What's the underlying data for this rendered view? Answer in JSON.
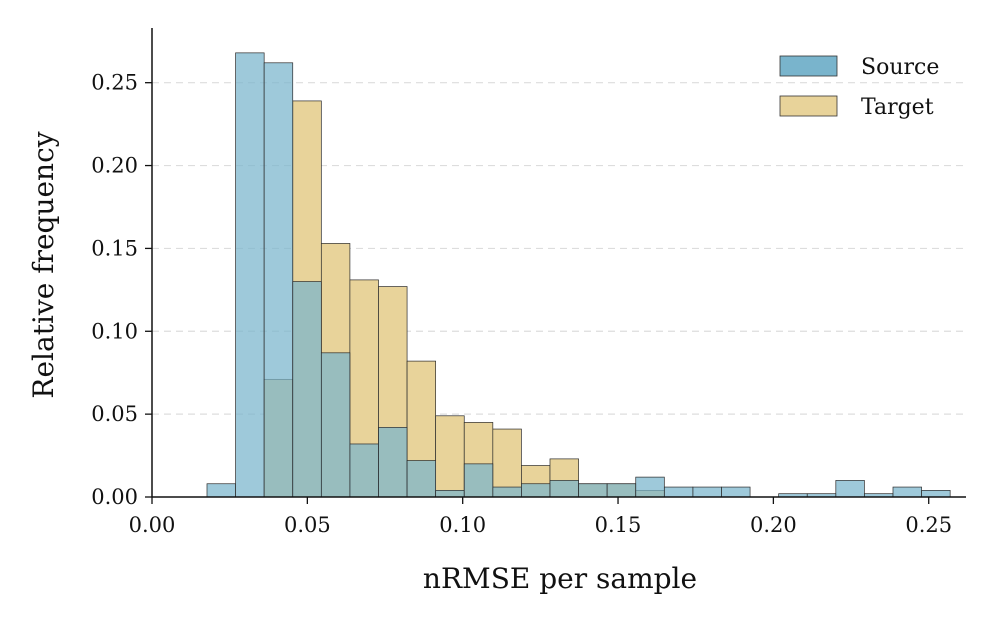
{
  "chart_data": {
    "type": "bar",
    "subtype": "overlapping-histogram",
    "title": "",
    "xlabel": "nRMSE per sample",
    "ylabel": "Relative frequency",
    "xlim": [
      0.0,
      0.262
    ],
    "ylim": [
      0.0,
      0.283
    ],
    "xticks": [
      0.0,
      0.05,
      0.1,
      0.15,
      0.2,
      0.25
    ],
    "xtick_labels": [
      "0.00",
      "0.05",
      "0.10",
      "0.15",
      "0.20",
      "0.25"
    ],
    "yticks": [
      0.0,
      0.05,
      0.1,
      0.15,
      0.2,
      0.25
    ],
    "ytick_labels": [
      "0.00",
      "0.05",
      "0.10",
      "0.15",
      "0.20",
      "0.25"
    ],
    "grid": "horizontal-dashed",
    "legend_position": "top-right",
    "bin_edges": [
      0.0177,
      0.0269,
      0.0361,
      0.0453,
      0.0545,
      0.0637,
      0.0729,
      0.0821,
      0.0913,
      0.1005,
      0.1097,
      0.1189,
      0.1281,
      0.1373,
      0.1465,
      0.1557,
      0.1649,
      0.1741,
      0.1833,
      0.1925,
      0.2017,
      0.2109,
      0.2201,
      0.2293,
      0.2385,
      0.2477,
      0.2569
    ],
    "series": [
      {
        "name": "Source",
        "color": "#79b4cc",
        "values": [
          0.008,
          0.268,
          0.262,
          0.13,
          0.087,
          0.032,
          0.042,
          0.022,
          0.004,
          0.02,
          0.006,
          0.008,
          0.01,
          0.008,
          0.008,
          0.012,
          0.006,
          0.006,
          0.006,
          0.0,
          0.002,
          0.002,
          0.01,
          0.002,
          0.006,
          0.004
        ]
      },
      {
        "name": "Target",
        "color": "#e8d39a",
        "values": [
          0.0,
          0.0,
          0.071,
          0.239,
          0.153,
          0.131,
          0.127,
          0.082,
          0.049,
          0.045,
          0.041,
          0.019,
          0.023,
          0.008,
          0.008,
          0.004,
          0.0,
          0.0,
          0.0,
          0.0,
          0.0,
          0.0,
          0.0,
          0.0,
          0.0,
          0.0
        ]
      }
    ]
  }
}
